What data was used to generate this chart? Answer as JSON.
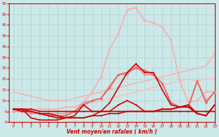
{
  "background_color": "#cce8e8",
  "grid_color": "#aacccc",
  "xlabel": "Vent moyen/en rafales ( km/h )",
  "xlim": [
    -0.5,
    23
  ],
  "ylim": [
    0,
    55
  ],
  "yticks": [
    0,
    5,
    10,
    15,
    20,
    25,
    30,
    35,
    40,
    45,
    50,
    55
  ],
  "xticks": [
    0,
    1,
    2,
    3,
    4,
    5,
    6,
    7,
    8,
    9,
    10,
    11,
    12,
    13,
    14,
    15,
    16,
    17,
    18,
    19,
    20,
    21,
    22,
    23
  ],
  "lines": [
    {
      "x": [
        0,
        1,
        2,
        3,
        4,
        5,
        6,
        7,
        8,
        9,
        10,
        11,
        12,
        13,
        14,
        15,
        16,
        17,
        18,
        19,
        20,
        21,
        22,
        23
      ],
      "y": [
        6,
        6,
        6,
        5,
        5,
        5,
        5,
        5,
        5,
        5,
        5,
        5,
        5,
        5,
        5,
        5,
        5,
        5,
        5,
        5,
        5,
        5,
        5,
        5
      ],
      "color": "#cc0000",
      "lw": 1.2,
      "marker": "s",
      "ms": 2.0,
      "zorder": 5
    },
    {
      "x": [
        0,
        1,
        2,
        3,
        4,
        5,
        6,
        7,
        8,
        9,
        10,
        11,
        12,
        13,
        14,
        15,
        16,
        17,
        18,
        19,
        20,
        21,
        22,
        23
      ],
      "y": [
        6,
        5,
        5,
        4,
        3,
        2,
        2,
        2,
        2,
        3,
        3,
        4,
        4,
        5,
        5,
        5,
        5,
        6,
        6,
        7,
        7,
        4,
        3,
        8
      ],
      "color": "#cc0000",
      "lw": 1.2,
      "marker": "s",
      "ms": 2.0,
      "zorder": 5
    },
    {
      "x": [
        0,
        1,
        2,
        3,
        4,
        5,
        6,
        7,
        8,
        9,
        10,
        11,
        12,
        13,
        14,
        15,
        16,
        17,
        18,
        19,
        20,
        21,
        22,
        23
      ],
      "y": [
        6,
        6,
        2,
        1,
        1,
        1,
        2,
        2,
        2,
        3,
        5,
        9,
        16,
        23,
        27,
        23,
        23,
        15,
        8,
        7,
        7,
        4,
        3,
        8
      ],
      "color": "#cc0000",
      "lw": 1.2,
      "marker": "s",
      "ms": 2.0,
      "zorder": 5
    },
    {
      "x": [
        0,
        1,
        2,
        3,
        4,
        5,
        6,
        7,
        8,
        9,
        10,
        11,
        12,
        13,
        14,
        15,
        16,
        17,
        18,
        19,
        20,
        21,
        22,
        23
      ],
      "y": [
        6,
        6,
        5,
        4,
        4,
        3,
        2,
        3,
        8,
        5,
        5,
        5,
        8,
        10,
        8,
        5,
        5,
        6,
        6,
        7,
        8,
        4,
        3,
        8
      ],
      "color": "#cc0000",
      "lw": 1.2,
      "marker": "s",
      "ms": 1.8,
      "zorder": 5
    },
    {
      "x": [
        0,
        1,
        2,
        3,
        4,
        5,
        6,
        7,
        8,
        9,
        10,
        11,
        12,
        13,
        14,
        15,
        16,
        17,
        18,
        19,
        20,
        21,
        22,
        23
      ],
      "y": [
        6,
        6,
        5,
        4,
        3,
        3,
        3,
        5,
        8,
        10,
        11,
        16,
        22,
        23,
        25,
        24,
        22,
        18,
        9,
        7,
        7,
        19,
        9,
        14
      ],
      "color": "#e86060",
      "lw": 1.2,
      "marker": "D",
      "ms": 2.0,
      "zorder": 4
    },
    {
      "x": [
        0,
        1,
        2,
        3,
        4,
        5,
        6,
        7,
        8,
        9,
        10,
        11,
        12,
        13,
        14,
        15,
        16,
        17,
        18,
        19,
        20,
        21,
        22,
        23
      ],
      "y": [
        14,
        13,
        12,
        11,
        10,
        10,
        10,
        11,
        12,
        13,
        14,
        15,
        16,
        17,
        18,
        19,
        20,
        21,
        22,
        23,
        24,
        25,
        26,
        32
      ],
      "color": "#ffaaaa",
      "lw": 1.0,
      "marker": null,
      "ms": 0,
      "zorder": 2
    },
    {
      "x": [
        0,
        1,
        2,
        3,
        4,
        5,
        6,
        7,
        8,
        9,
        10,
        11,
        12,
        13,
        14,
        15,
        16,
        17,
        18,
        19,
        20,
        21,
        22,
        23
      ],
      "y": [
        6,
        6,
        6,
        6,
        6,
        6,
        7,
        7,
        8,
        9,
        10,
        11,
        12,
        13,
        14,
        15,
        16,
        17,
        18,
        19,
        20,
        19,
        20,
        20
      ],
      "color": "#ffbbbb",
      "lw": 1.0,
      "marker": null,
      "ms": 0,
      "zorder": 2
    },
    {
      "x": [
        0,
        1,
        2,
        3,
        4,
        5,
        6,
        7,
        8,
        9,
        10,
        11,
        12,
        13,
        14,
        15,
        16,
        17,
        18,
        19,
        20,
        21,
        22,
        23
      ],
      "y": [
        6,
        6,
        6,
        6,
        6,
        6,
        7,
        7,
        9,
        14,
        21,
        34,
        41,
        52,
        53,
        47,
        46,
        44,
        38,
        19,
        9,
        10,
        14,
        14
      ],
      "color": "#ffaaaa",
      "lw": 1.2,
      "marker": "D",
      "ms": 2.0,
      "zorder": 3
    },
    {
      "x": [
        0,
        1,
        2,
        3,
        4,
        5,
        6,
        7,
        8,
        9,
        10,
        11,
        12,
        13,
        14,
        15,
        16,
        17,
        18,
        19,
        20,
        21,
        22,
        23
      ],
      "y": [
        5,
        5,
        4,
        4,
        4,
        4,
        4,
        5,
        9,
        10,
        11,
        17,
        22,
        22,
        26,
        22,
        22,
        18,
        9,
        7,
        8,
        19,
        10,
        14
      ],
      "color": "#ff8888",
      "lw": 1.2,
      "marker": "D",
      "ms": 1.8,
      "zorder": 3
    }
  ]
}
